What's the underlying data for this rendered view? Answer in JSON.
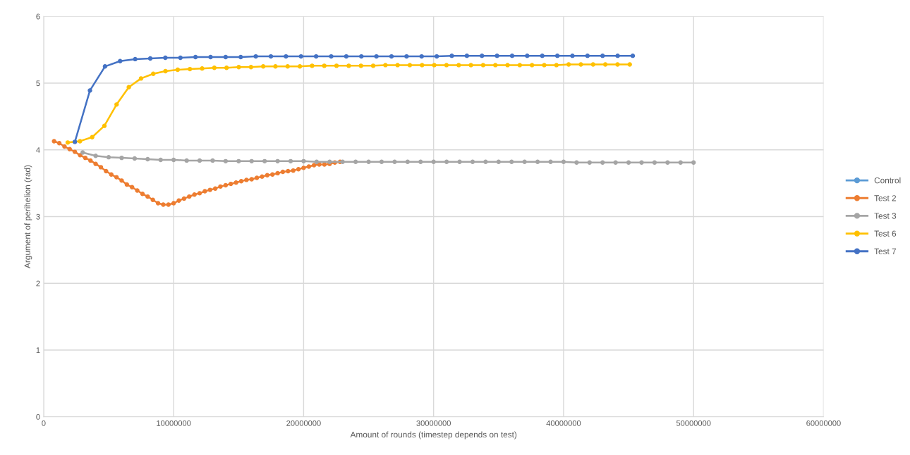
{
  "chart_data": {
    "type": "line",
    "xlabel": "Amount of rounds (timestep depends on test)",
    "ylabel": "Argument of perihelion (rad)",
    "xlim": [
      0,
      60000000
    ],
    "xticks": [
      0,
      10000000,
      20000000,
      30000000,
      40000000,
      50000000,
      60000000
    ],
    "ylim": [
      0,
      6
    ],
    "yticks": [
      0,
      1,
      2,
      3,
      4,
      5,
      6
    ],
    "grid": true,
    "legend": "right",
    "marker": "circle",
    "line_style": "solid",
    "series": [
      {
        "name": "Control",
        "color": "#5b9bd5"
      },
      {
        "name": "Test 2",
        "color": "#ed7d31",
        "x": [
          800000,
          1200000,
          1600000,
          2000000,
          2400000,
          2800000,
          3200000,
          3600000,
          4000000,
          4400000,
          4800000,
          5200000,
          5600000,
          6000000,
          6400000,
          6800000,
          7200000,
          7600000,
          8000000,
          8400000,
          8800000,
          9200000,
          9600000,
          10000000,
          10400000,
          10800000,
          11200000,
          11600000,
          12000000,
          12400000,
          12800000,
          13200000,
          13600000,
          14000000,
          14400000,
          14800000,
          15200000,
          15600000,
          16000000,
          16400000,
          16800000,
          17200000,
          17600000,
          18000000,
          18400000,
          18800000,
          19200000,
          19600000,
          20000000,
          20400000,
          20800000,
          21200000,
          21600000,
          22000000,
          22400000,
          22800000
        ],
        "values": [
          4.13,
          4.1,
          4.05,
          4.01,
          3.97,
          3.92,
          3.88,
          3.84,
          3.79,
          3.74,
          3.68,
          3.63,
          3.59,
          3.54,
          3.48,
          3.44,
          3.39,
          3.34,
          3.3,
          3.25,
          3.2,
          3.18,
          3.18,
          3.2,
          3.24,
          3.27,
          3.3,
          3.33,
          3.35,
          3.38,
          3.4,
          3.42,
          3.45,
          3.47,
          3.49,
          3.51,
          3.53,
          3.55,
          3.56,
          3.58,
          3.6,
          3.62,
          3.63,
          3.65,
          3.67,
          3.68,
          3.69,
          3.71,
          3.73,
          3.75,
          3.77,
          3.78,
          3.78,
          3.79,
          3.81,
          3.82
        ]
      },
      {
        "name": "Test 3",
        "color": "#a5a5a5",
        "x": [
          3000000,
          4000000,
          5000000,
          6000000,
          7000000,
          8000000,
          9000000,
          10000000,
          11000000,
          12000000,
          13000000,
          14000000,
          15000000,
          16000000,
          17000000,
          18000000,
          19000000,
          20000000,
          21000000,
          22000000,
          23000000,
          24000000,
          25000000,
          26000000,
          27000000,
          28000000,
          29000000,
          30000000,
          31000000,
          32000000,
          33000000,
          34000000,
          35000000,
          36000000,
          37000000,
          38000000,
          39000000,
          40000000,
          41000000,
          42000000,
          43000000,
          44000000,
          45000000,
          46000000,
          47000000,
          48000000,
          49000000,
          50000000
        ],
        "values": [
          3.96,
          3.91,
          3.89,
          3.88,
          3.87,
          3.86,
          3.85,
          3.85,
          3.84,
          3.84,
          3.84,
          3.83,
          3.83,
          3.83,
          3.83,
          3.83,
          3.83,
          3.83,
          3.82,
          3.82,
          3.82,
          3.82,
          3.82,
          3.82,
          3.82,
          3.82,
          3.82,
          3.82,
          3.82,
          3.82,
          3.82,
          3.82,
          3.82,
          3.82,
          3.82,
          3.82,
          3.82,
          3.82,
          3.81,
          3.81,
          3.81,
          3.81,
          3.81,
          3.81,
          3.81,
          3.81,
          3.81,
          3.81
        ]
      },
      {
        "name": "Test 6",
        "color": "#ffc000",
        "x": [
          1850000,
          2790000,
          3730000,
          4670000,
          5610000,
          6550000,
          7490000,
          8430000,
          9370000,
          10310000,
          11250000,
          12190000,
          13130000,
          14070000,
          15010000,
          15950000,
          16890000,
          17830000,
          18770000,
          19710000,
          20650000,
          21590000,
          22530000,
          23470000,
          24410000,
          25350000,
          26290000,
          27230000,
          28170000,
          29110000,
          30050000,
          30990000,
          31930000,
          32870000,
          33810000,
          34750000,
          35690000,
          36630000,
          37570000,
          38510000,
          39450000,
          40390000,
          41330000,
          42270000,
          43210000,
          44150000,
          45090000
        ],
        "values": [
          4.11,
          4.13,
          4.19,
          4.36,
          4.68,
          4.94,
          5.07,
          5.14,
          5.18,
          5.2,
          5.21,
          5.22,
          5.23,
          5.23,
          5.24,
          5.24,
          5.25,
          5.25,
          5.25,
          5.25,
          5.26,
          5.26,
          5.26,
          5.26,
          5.26,
          5.26,
          5.27,
          5.27,
          5.27,
          5.27,
          5.27,
          5.27,
          5.27,
          5.27,
          5.27,
          5.27,
          5.27,
          5.27,
          5.27,
          5.27,
          5.27,
          5.28,
          5.28,
          5.28,
          5.28,
          5.28,
          5.28
        ]
      },
      {
        "name": "Test 7",
        "color": "#4472c4",
        "x": [
          2400000,
          3560000,
          4720000,
          5880000,
          7040000,
          8200000,
          9360000,
          10520000,
          11680000,
          12840000,
          14000000,
          15160000,
          16320000,
          17480000,
          18640000,
          19800000,
          20960000,
          22120000,
          23280000,
          24440000,
          25600000,
          26760000,
          27920000,
          29080000,
          30240000,
          31400000,
          32560000,
          33720000,
          34880000,
          36040000,
          37200000,
          38360000,
          39520000,
          40680000,
          41840000,
          43000000,
          44160000,
          45320000
        ],
        "values": [
          4.12,
          4.89,
          5.25,
          5.33,
          5.36,
          5.37,
          5.38,
          5.38,
          5.39,
          5.39,
          5.39,
          5.39,
          5.4,
          5.4,
          5.4,
          5.4,
          5.4,
          5.4,
          5.4,
          5.4,
          5.4,
          5.4,
          5.4,
          5.4,
          5.4,
          5.41,
          5.41,
          5.41,
          5.41,
          5.41,
          5.41,
          5.41,
          5.41,
          5.41,
          5.41,
          5.41,
          5.41,
          5.41
        ]
      }
    ]
  }
}
